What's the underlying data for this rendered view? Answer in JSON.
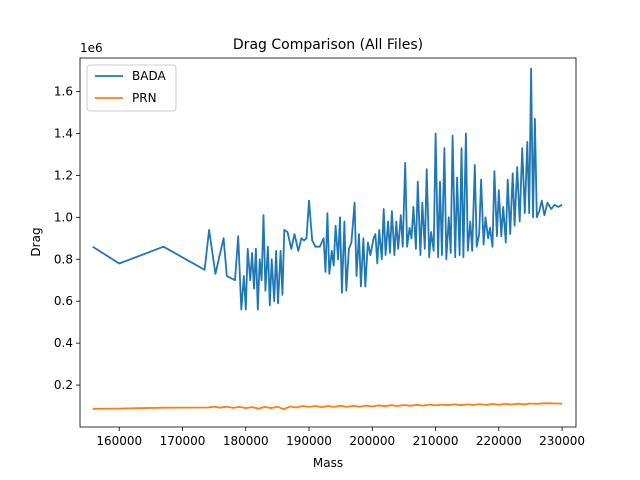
{
  "chart_data": {
    "type": "line",
    "title": "Drag Comparison (All Files)",
    "xlabel": "Mass",
    "ylabel": "Drag",
    "y_offset_label": "1e6",
    "xlim": [
      153800,
      232200
    ],
    "ylim": [
      0,
      1.76
    ],
    "x_ticks": [
      160000,
      170000,
      180000,
      190000,
      200000,
      210000,
      220000,
      230000
    ],
    "x_tick_labels": [
      "160000",
      "170000",
      "180000",
      "190000",
      "200000",
      "210000",
      "220000",
      "230000"
    ],
    "y_ticks": [
      0.2,
      0.4,
      0.6,
      0.8,
      1.0,
      1.2,
      1.4,
      1.6
    ],
    "y_tick_labels": [
      "0.2",
      "0.4",
      "0.6",
      "0.8",
      "1.0",
      "1.2",
      "1.4",
      "1.6"
    ],
    "grid": false,
    "legend_position": "top-left",
    "colors": {
      "BADA": "#1f77b4",
      "PRN": "#ff7f0e"
    },
    "series": [
      {
        "name": "BADA",
        "points": [
          [
            155800,
            0.86
          ],
          [
            160000,
            0.78
          ],
          [
            167000,
            0.86
          ],
          [
            173500,
            0.75
          ],
          [
            174200,
            0.94
          ],
          [
            175200,
            0.73
          ],
          [
            176500,
            0.9
          ],
          [
            177000,
            0.72
          ],
          [
            178300,
            0.7
          ],
          [
            178800,
            0.91
          ],
          [
            179300,
            0.56
          ],
          [
            179700,
            0.72
          ],
          [
            180000,
            0.56
          ],
          [
            180300,
            0.85
          ],
          [
            180700,
            0.7
          ],
          [
            181000,
            0.83
          ],
          [
            181300,
            0.66
          ],
          [
            181600,
            0.85
          ],
          [
            181900,
            0.56
          ],
          [
            182200,
            0.8
          ],
          [
            182500,
            0.7
          ],
          [
            182800,
            1.01
          ],
          [
            183100,
            0.65
          ],
          [
            183500,
            0.86
          ],
          [
            183800,
            0.58
          ],
          [
            184100,
            0.8
          ],
          [
            184500,
            0.6
          ],
          [
            184800,
            0.84
          ],
          [
            185100,
            0.59
          ],
          [
            185500,
            0.84
          ],
          [
            185800,
            0.63
          ],
          [
            186100,
            0.94
          ],
          [
            186600,
            0.93
          ],
          [
            187200,
            0.85
          ],
          [
            187700,
            0.92
          ],
          [
            188300,
            0.84
          ],
          [
            188800,
            0.9
          ],
          [
            189200,
            0.89
          ],
          [
            189600,
            0.9
          ],
          [
            190000,
            1.08
          ],
          [
            190500,
            0.89
          ],
          [
            191000,
            0.86
          ],
          [
            191700,
            0.86
          ],
          [
            192300,
            0.9
          ],
          [
            192600,
            0.74
          ],
          [
            192900,
            1.02
          ],
          [
            193200,
            0.73
          ],
          [
            193600,
            0.84
          ],
          [
            193900,
            0.77
          ],
          [
            194200,
            0.96
          ],
          [
            194600,
            0.8
          ],
          [
            194900,
            1.0
          ],
          [
            195200,
            0.64
          ],
          [
            195600,
            0.98
          ],
          [
            195900,
            0.65
          ],
          [
            196300,
            0.85
          ],
          [
            196700,
            0.88
          ],
          [
            197200,
            1.07
          ],
          [
            197500,
            0.72
          ],
          [
            197900,
            0.92
          ],
          [
            198200,
            0.67
          ],
          [
            198600,
            0.9
          ],
          [
            198900,
            0.67
          ],
          [
            199300,
            0.88
          ],
          [
            199700,
            0.82
          ],
          [
            200200,
            0.9
          ],
          [
            200500,
            0.92
          ],
          [
            200800,
            0.78
          ],
          [
            201100,
            0.94
          ],
          [
            201500,
            0.8
          ],
          [
            201800,
            1.04
          ],
          [
            202100,
            0.82
          ],
          [
            202500,
            0.98
          ],
          [
            202800,
            0.83
          ],
          [
            203100,
            1.03
          ],
          [
            203500,
            0.82
          ],
          [
            203800,
            0.98
          ],
          [
            204100,
            0.85
          ],
          [
            204500,
            1.01
          ],
          [
            204800,
            0.86
          ],
          [
            205200,
            1.26
          ],
          [
            205500,
            0.86
          ],
          [
            205900,
            0.95
          ],
          [
            206200,
            0.9
          ],
          [
            206500,
            1.05
          ],
          [
            206900,
            0.85
          ],
          [
            207200,
            1.17
          ],
          [
            207600,
            0.82
          ],
          [
            207900,
            1.07
          ],
          [
            208300,
            0.85
          ],
          [
            208600,
            1.23
          ],
          [
            209000,
            0.81
          ],
          [
            209300,
            0.93
          ],
          [
            209700,
            0.84
          ],
          [
            210000,
            1.4
          ],
          [
            210400,
            0.81
          ],
          [
            210700,
            1.17
          ],
          [
            211000,
            0.82
          ],
          [
            211400,
            1.33
          ],
          [
            211700,
            0.8
          ],
          [
            212100,
            1.0
          ],
          [
            212400,
            0.83
          ],
          [
            212700,
            1.39
          ],
          [
            213100,
            0.81
          ],
          [
            213400,
            1.19
          ],
          [
            213800,
            0.82
          ],
          [
            214100,
            1.33
          ],
          [
            214400,
            0.81
          ],
          [
            214800,
            1.4
          ],
          [
            215100,
            0.84
          ],
          [
            215500,
            0.98
          ],
          [
            215800,
            0.84
          ],
          [
            216200,
            1.25
          ],
          [
            216500,
            0.86
          ],
          [
            216900,
            0.92
          ],
          [
            217200,
            1.18
          ],
          [
            217600,
            0.87
          ],
          [
            217900,
            1.0
          ],
          [
            218300,
            0.9
          ],
          [
            218600,
            0.95
          ],
          [
            219000,
            0.86
          ],
          [
            219300,
            1.22
          ],
          [
            219700,
            0.91
          ],
          [
            220000,
            1.13
          ],
          [
            220400,
            0.91
          ],
          [
            220700,
            1.05
          ],
          [
            221100,
            0.88
          ],
          [
            221400,
            1.18
          ],
          [
            221800,
            0.92
          ],
          [
            222200,
            1.21
          ],
          [
            222500,
            0.96
          ],
          [
            222900,
            1.24
          ],
          [
            223300,
            0.98
          ],
          [
            223700,
            1.33
          ],
          [
            224100,
            1.02
          ],
          [
            224500,
            1.36
          ],
          [
            224800,
            1.02
          ],
          [
            225100,
            1.71
          ],
          [
            225400,
            1.0
          ],
          [
            225700,
            1.47
          ],
          [
            226000,
            1.0
          ],
          [
            226400,
            1.03
          ],
          [
            226800,
            1.08
          ],
          [
            227200,
            1.01
          ],
          [
            227700,
            1.07
          ],
          [
            228300,
            1.04
          ],
          [
            228800,
            1.06
          ],
          [
            229400,
            1.05
          ],
          [
            230000,
            1.06
          ]
        ]
      },
      {
        "name": "PRN",
        "points": [
          [
            155800,
            0.087
          ],
          [
            160000,
            0.088
          ],
          [
            167000,
            0.092
          ],
          [
            174000,
            0.093
          ],
          [
            175000,
            0.097
          ],
          [
            176000,
            0.092
          ],
          [
            177000,
            0.097
          ],
          [
            178000,
            0.091
          ],
          [
            179000,
            0.096
          ],
          [
            180000,
            0.09
          ],
          [
            181000,
            0.095
          ],
          [
            182000,
            0.088
          ],
          [
            183000,
            0.096
          ],
          [
            184000,
            0.09
          ],
          [
            185000,
            0.097
          ],
          [
            186000,
            0.085
          ],
          [
            187000,
            0.098
          ],
          [
            188000,
            0.093
          ],
          [
            189000,
            0.1
          ],
          [
            190000,
            0.096
          ],
          [
            191000,
            0.1
          ],
          [
            192000,
            0.095
          ],
          [
            193000,
            0.1
          ],
          [
            194000,
            0.096
          ],
          [
            195000,
            0.101
          ],
          [
            196000,
            0.096
          ],
          [
            197000,
            0.101
          ],
          [
            198000,
            0.097
          ],
          [
            199000,
            0.102
          ],
          [
            200000,
            0.098
          ],
          [
            201000,
            0.103
          ],
          [
            202000,
            0.099
          ],
          [
            203000,
            0.104
          ],
          [
            204000,
            0.1
          ],
          [
            205000,
            0.105
          ],
          [
            206000,
            0.101
          ],
          [
            207000,
            0.106
          ],
          [
            208000,
            0.102
          ],
          [
            209000,
            0.107
          ],
          [
            210000,
            0.103
          ],
          [
            211000,
            0.107
          ],
          [
            212000,
            0.104
          ],
          [
            213000,
            0.108
          ],
          [
            214000,
            0.104
          ],
          [
            215000,
            0.108
          ],
          [
            216000,
            0.105
          ],
          [
            217000,
            0.109
          ],
          [
            218000,
            0.105
          ],
          [
            219000,
            0.11
          ],
          [
            220000,
            0.106
          ],
          [
            221000,
            0.11
          ],
          [
            222000,
            0.107
          ],
          [
            223000,
            0.111
          ],
          [
            224000,
            0.108
          ],
          [
            225000,
            0.112
          ],
          [
            226000,
            0.11
          ],
          [
            227000,
            0.113
          ],
          [
            228000,
            0.113
          ],
          [
            229000,
            0.112
          ],
          [
            230000,
            0.111
          ]
        ]
      }
    ]
  }
}
